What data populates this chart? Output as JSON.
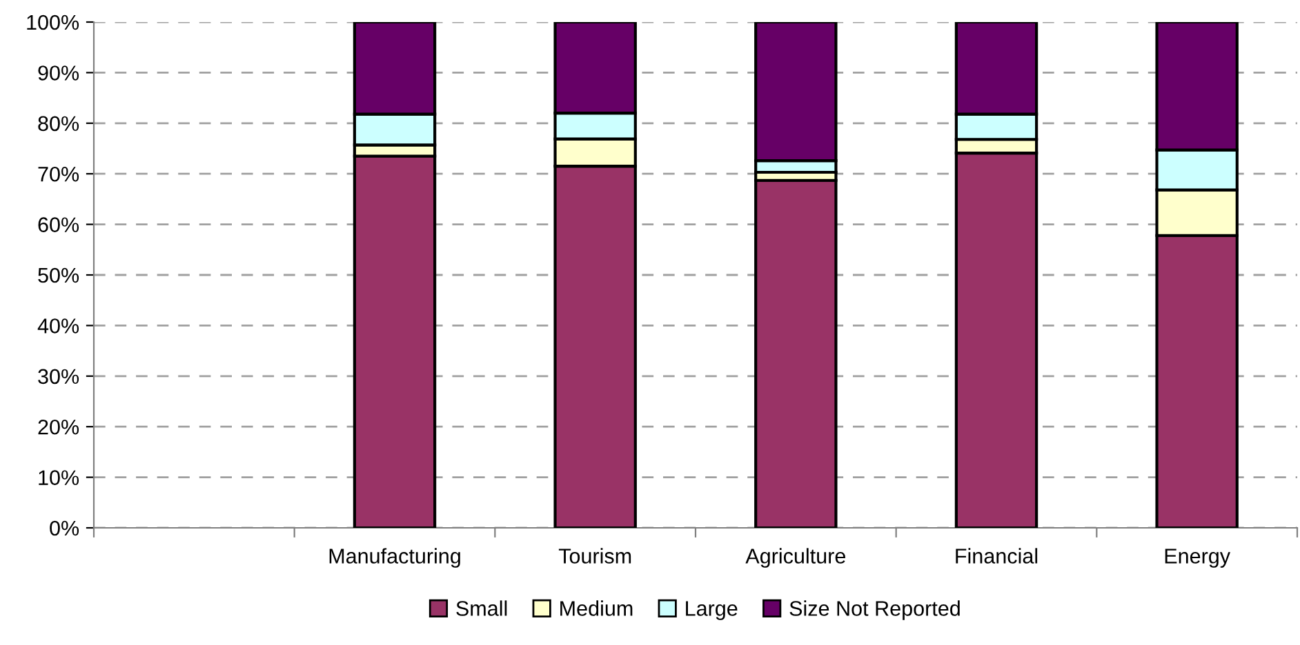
{
  "chart_data": {
    "type": "bar",
    "stacked": true,
    "categories": [
      null,
      "Manufacturing",
      "Tourism",
      "Agriculture",
      "Financial",
      "Energy"
    ],
    "series": [
      {
        "name": "Small",
        "color": "#993366",
        "values": [
          null,
          73.5,
          71.5,
          68.7,
          74.1,
          57.8
        ]
      },
      {
        "name": "Medium",
        "color": "#ffffcc",
        "values": [
          null,
          2.2,
          5.4,
          1.6,
          2.7,
          9.0
        ]
      },
      {
        "name": "Large",
        "color": "#ccffff",
        "values": [
          null,
          6.1,
          5.1,
          2.3,
          5.0,
          7.9
        ]
      },
      {
        "name": "Size Not Reported",
        "color": "#660066",
        "values": [
          null,
          18.2,
          18.0,
          27.4,
          18.2,
          25.3
        ]
      }
    ],
    "ylim": [
      0,
      100
    ],
    "yticks": [
      {
        "value": 0,
        "label": "0%"
      },
      {
        "value": 10,
        "label": "10%"
      },
      {
        "value": 20,
        "label": "20%"
      },
      {
        "value": 30,
        "label": "30%"
      },
      {
        "value": 40,
        "label": "40%"
      },
      {
        "value": 50,
        "label": "50%"
      },
      {
        "value": 60,
        "label": "60%"
      },
      {
        "value": 70,
        "label": "70%"
      },
      {
        "value": 80,
        "label": "80%"
      },
      {
        "value": 90,
        "label": "90%"
      },
      {
        "value": 100,
        "label": "100%"
      }
    ],
    "grid": "y",
    "legend": "bottom"
  }
}
